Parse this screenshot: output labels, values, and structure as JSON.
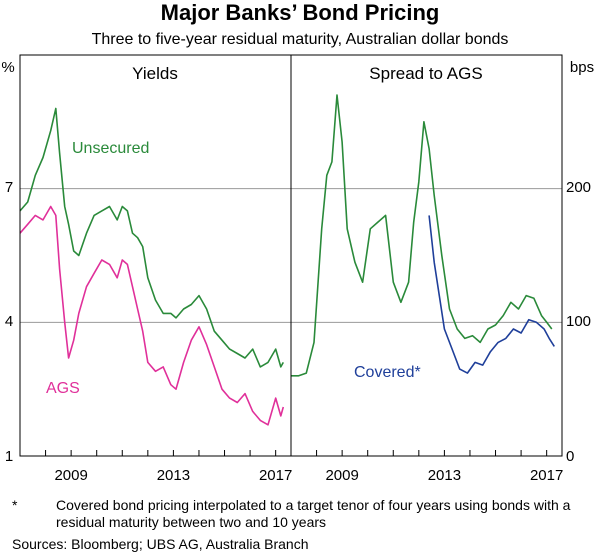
{
  "header": {
    "title": "Major Banks’ Bond Pricing",
    "subtitle": "Three to five-year residual maturity, Australian dollar bonds"
  },
  "footer": {
    "note_marker": "*",
    "note": "Covered bond pricing interpolated to a target tenor of four years using bonds with a residual maturity between two and 10 years",
    "sources": "Sources: Bloomberg; UBS AG, Australia Branch"
  },
  "colors": {
    "unsecured": "#2a8a3a",
    "ags": "#e0309a",
    "covered": "#1f3f9a",
    "grid": "#9a9a9a"
  },
  "chart_data": [
    {
      "type": "line",
      "panel_title": "Yields",
      "left_axis_unit": "%",
      "ylim": [
        1,
        10
      ],
      "yticks": [
        1,
        4,
        7
      ],
      "xlim": [
        2007.0,
        2017.6
      ],
      "xticks": [
        "2009",
        "2013",
        "2017"
      ],
      "xtick_values": [
        2009,
        2013,
        2017
      ],
      "series": [
        {
          "name": "Unsecured",
          "label": "Unsecured",
          "color": "#2a8a3a",
          "x": [
            2007.0,
            2007.3,
            2007.6,
            2007.9,
            2008.2,
            2008.4,
            2008.55,
            2008.75,
            2008.9,
            2009.1,
            2009.3,
            2009.6,
            2009.9,
            2010.2,
            2010.5,
            2010.8,
            2011.0,
            2011.2,
            2011.4,
            2011.6,
            2011.8,
            2012.0,
            2012.3,
            2012.6,
            2012.9,
            2013.1,
            2013.4,
            2013.7,
            2014.0,
            2014.3,
            2014.6,
            2014.9,
            2015.2,
            2015.5,
            2015.8,
            2016.1,
            2016.4,
            2016.7,
            2017.0,
            2017.2,
            2017.3
          ],
          "values": [
            6.5,
            6.7,
            7.3,
            7.7,
            8.3,
            8.8,
            7.8,
            6.6,
            6.2,
            5.6,
            5.5,
            6.0,
            6.4,
            6.5,
            6.6,
            6.3,
            6.6,
            6.5,
            6.0,
            5.9,
            5.7,
            5.0,
            4.5,
            4.2,
            4.2,
            4.1,
            4.3,
            4.4,
            4.6,
            4.3,
            3.8,
            3.6,
            3.4,
            3.3,
            3.2,
            3.4,
            3.0,
            3.1,
            3.4,
            3.0,
            3.1
          ]
        },
        {
          "name": "AGS",
          "label": "AGS",
          "color": "#e0309a",
          "x": [
            2007.0,
            2007.3,
            2007.6,
            2007.9,
            2008.2,
            2008.4,
            2008.55,
            2008.75,
            2008.9,
            2009.1,
            2009.3,
            2009.6,
            2009.9,
            2010.2,
            2010.5,
            2010.8,
            2011.0,
            2011.2,
            2011.4,
            2011.6,
            2011.8,
            2012.0,
            2012.3,
            2012.6,
            2012.9,
            2013.1,
            2013.4,
            2013.7,
            2014.0,
            2014.3,
            2014.6,
            2014.9,
            2015.2,
            2015.5,
            2015.8,
            2016.1,
            2016.4,
            2016.7,
            2017.0,
            2017.2,
            2017.3
          ],
          "values": [
            6.0,
            6.2,
            6.4,
            6.3,
            6.6,
            6.4,
            5.2,
            4.0,
            3.2,
            3.6,
            4.2,
            4.8,
            5.1,
            5.4,
            5.3,
            5.0,
            5.4,
            5.3,
            4.8,
            4.3,
            3.8,
            3.1,
            2.9,
            3.0,
            2.6,
            2.5,
            3.1,
            3.6,
            3.9,
            3.5,
            3.0,
            2.5,
            2.3,
            2.2,
            2.4,
            2.0,
            1.8,
            1.7,
            2.3,
            1.9,
            2.1
          ]
        }
      ]
    },
    {
      "type": "line",
      "panel_title": "Spread to AGS",
      "right_axis_unit": "bps",
      "ylim": [
        0,
        300
      ],
      "yticks": [
        0,
        100,
        200
      ],
      "xlim": [
        2007.0,
        2017.6
      ],
      "xticks": [
        "2009",
        "2013",
        "2017"
      ],
      "xtick_values": [
        2009,
        2013,
        2017
      ],
      "series": [
        {
          "name": "Unsecured",
          "color": "#2a8a3a",
          "x": [
            2007.0,
            2007.3,
            2007.6,
            2007.9,
            2008.2,
            2008.4,
            2008.6,
            2008.8,
            2009.0,
            2009.2,
            2009.5,
            2009.8,
            2010.1,
            2010.4,
            2010.7,
            2011.0,
            2011.3,
            2011.6,
            2011.8,
            2012.0,
            2012.2,
            2012.4,
            2012.6,
            2012.9,
            2013.2,
            2013.5,
            2013.8,
            2014.1,
            2014.4,
            2014.7,
            2015.0,
            2015.3,
            2015.6,
            2015.9,
            2016.2,
            2016.5,
            2016.8,
            2017.0,
            2017.2
          ],
          "values": [
            60,
            60,
            62,
            85,
            170,
            210,
            220,
            270,
            235,
            170,
            145,
            130,
            170,
            175,
            180,
            130,
            115,
            130,
            175,
            205,
            250,
            230,
            195,
            150,
            110,
            95,
            88,
            90,
            85,
            95,
            98,
            105,
            115,
            110,
            120,
            118,
            105,
            100,
            95
          ]
        },
        {
          "name": "Covered*",
          "label": "Covered*",
          "color": "#1f3f9a",
          "x": [
            2012.4,
            2012.6,
            2012.8,
            2013.0,
            2013.3,
            2013.6,
            2013.9,
            2014.2,
            2014.5,
            2014.8,
            2015.1,
            2015.4,
            2015.7,
            2016.0,
            2016.3,
            2016.6,
            2016.9,
            2017.1,
            2017.3
          ],
          "values": [
            180,
            145,
            120,
            95,
            80,
            65,
            62,
            70,
            68,
            78,
            85,
            88,
            95,
            92,
            102,
            100,
            95,
            88,
            82
          ]
        }
      ]
    }
  ]
}
